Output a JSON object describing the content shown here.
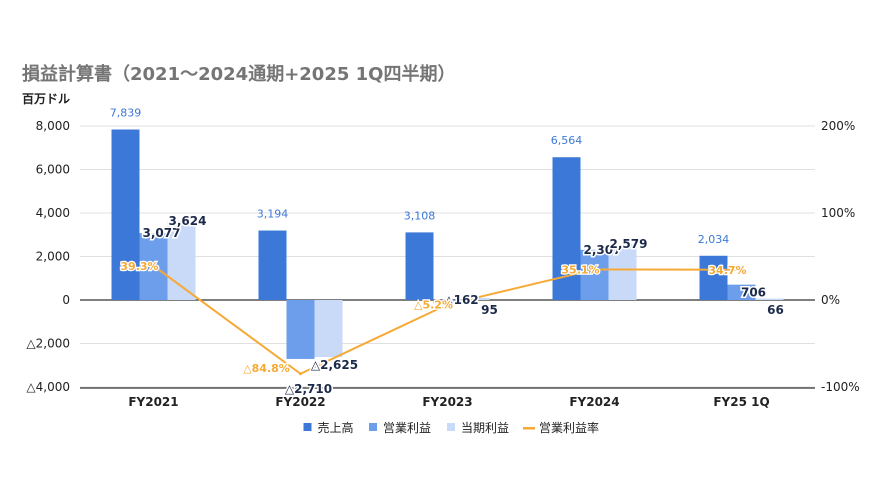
{
  "chart_data": {
    "type": "bar",
    "title": "損益計算書（2021〜2024通期+2025 1Q四半期）",
    "y_unit_label": "百万ドル",
    "categories": [
      "FY2021",
      "FY2022",
      "FY2023",
      "FY2024",
      "FY25 1Q"
    ],
    "ylim": [
      -4000,
      8000
    ],
    "y_ticks": [
      -4000,
      -2000,
      0,
      2000,
      4000,
      6000,
      8000
    ],
    "y_tick_labels": [
      "△4,000",
      "△2,000",
      "0",
      "2,000",
      "4,000",
      "6,000",
      "8,000"
    ],
    "y2lim": [
      -100,
      200
    ],
    "y2_ticks": [
      -100,
      0,
      100,
      200
    ],
    "y2_tick_labels": [
      "-100%",
      "0%",
      "100%",
      "200%"
    ],
    "series": [
      {
        "name": "売上高",
        "kind": "bar",
        "color": "#3c78d8",
        "values": [
          7839,
          3194,
          3108,
          6564,
          2034
        ],
        "labels": [
          "7,839",
          "3,194",
          "3,108",
          "6,564",
          "2,034"
        ],
        "label_color": "#3c78d8"
      },
      {
        "name": "営業利益",
        "kind": "bar",
        "color": "#6d9eeb",
        "values": [
          3077,
          -2710,
          -162,
          2307,
          706
        ],
        "labels": [
          "3,077",
          "△2,710",
          "△162",
          "2,307",
          "706"
        ],
        "label_color": "#1c2a4a"
      },
      {
        "name": "当期利益",
        "kind": "bar",
        "color": "#c9daf8",
        "values": [
          3624,
          -2625,
          95,
          2579,
          66
        ],
        "labels": [
          "3,624",
          "△2,625",
          "95",
          "2,579",
          "66"
        ],
        "label_color": "#1c2a4a"
      },
      {
        "name": "営業利益率",
        "kind": "line",
        "axis": "right",
        "color": "#f6a935",
        "values": [
          39.3,
          -84.8,
          -5.2,
          35.1,
          34.7
        ],
        "labels": [
          "39.3%",
          "△84.8%",
          "△5.2%",
          "35.1%",
          "34.7%"
        ],
        "label_color": "#f6a935"
      }
    ],
    "legend_position": "bottom",
    "grid": "horizontal"
  }
}
